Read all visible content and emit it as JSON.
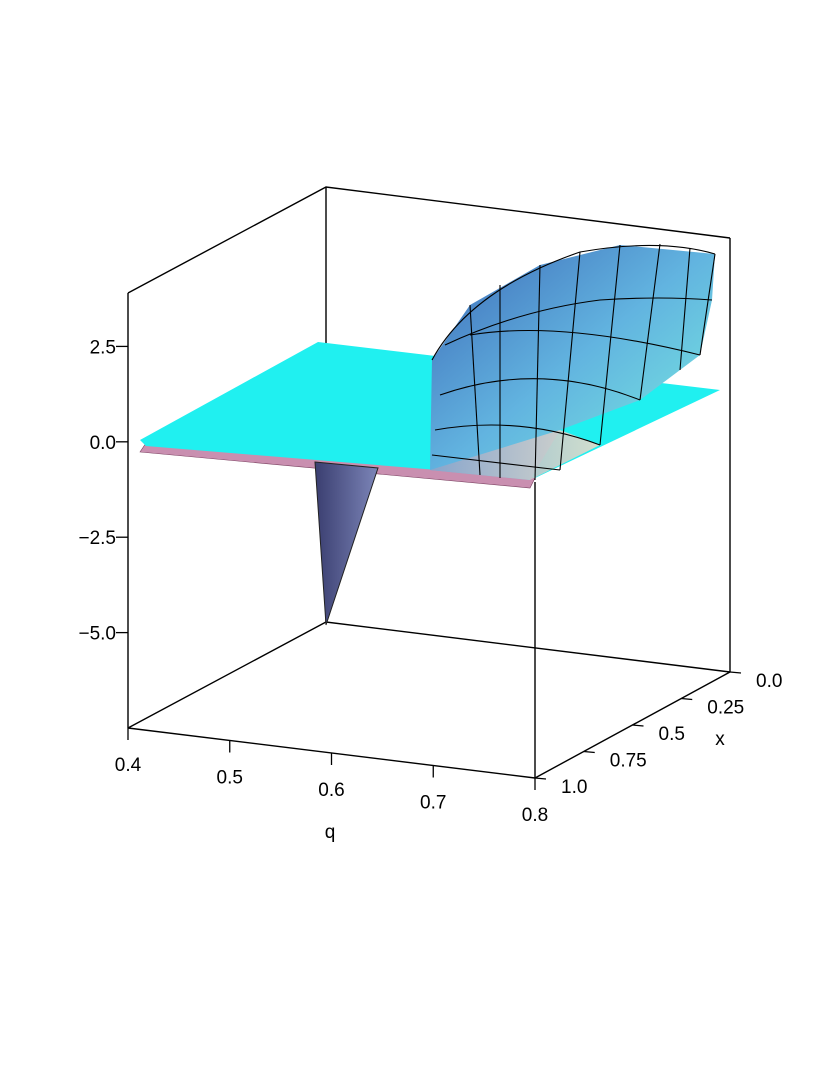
{
  "chart_data": {
    "type": "surface3d",
    "xlabel": "q",
    "ylabel": "x",
    "xlim": [
      0.4,
      0.8
    ],
    "xticks": [
      0.4,
      0.5,
      0.6,
      0.7,
      0.8
    ],
    "ylim": [
      1,
      0
    ],
    "yticks": [
      {
        "value": 0,
        "label": "0.0"
      },
      0.25,
      0.5,
      0.75,
      {
        "value": 1,
        "label": "1.0"
      }
    ],
    "zlim": [
      -7.5,
      3.9
    ],
    "zticks": [
      {
        "value": 2.5,
        "label": "2.5"
      },
      {
        "value": 0,
        "label": "0.0"
      },
      {
        "value": -2.5,
        "label": "−2.5"
      },
      {
        "value": -5,
        "label": "−5.0"
      }
    ]
  }
}
